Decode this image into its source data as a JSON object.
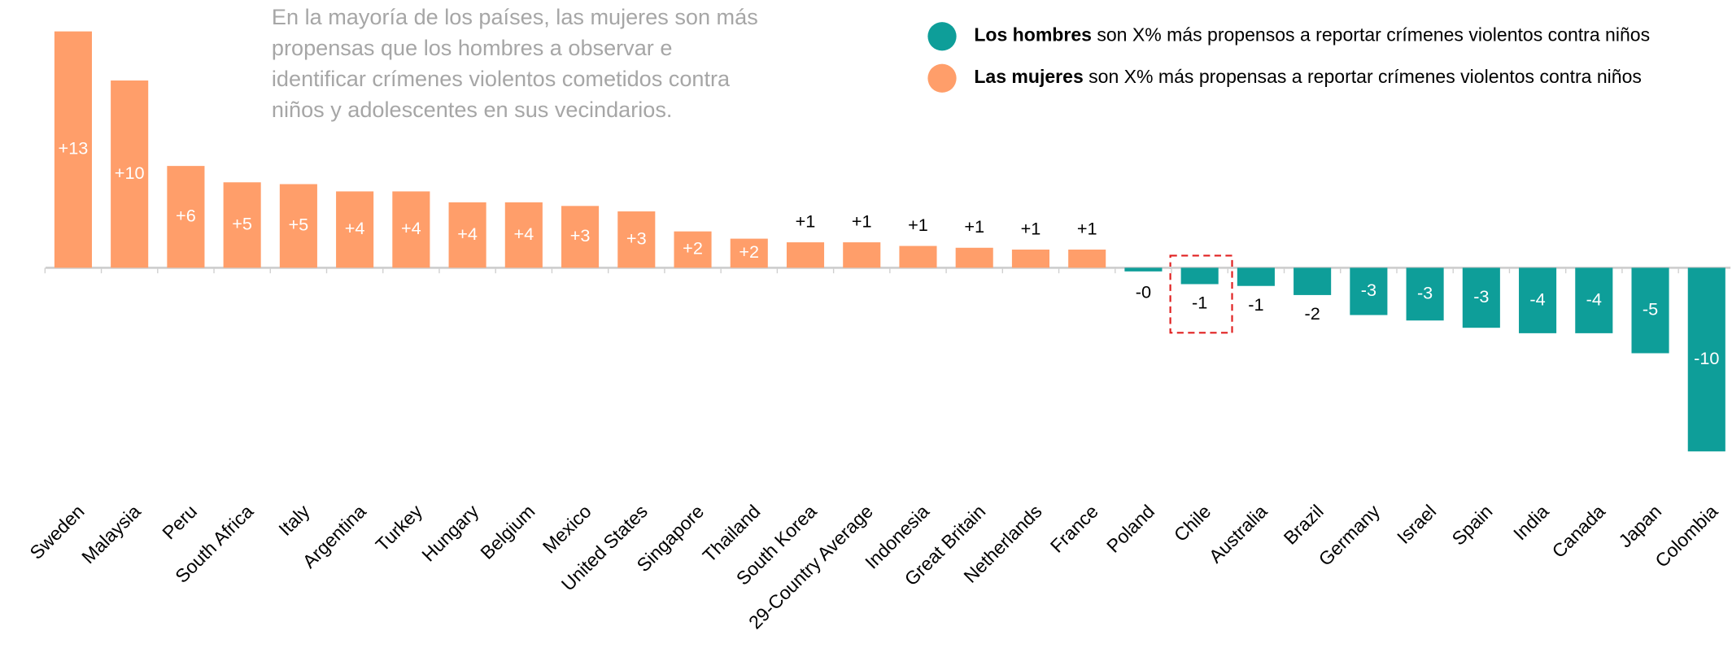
{
  "chart_data": {
    "type": "bar",
    "annotation": [
      "En la mayoría de los países, las mujeres son más",
      "propensas que los hombres a observar e",
      "identificar crímenes violentos cometidos contra",
      "niños y adolescentes en sus vecindarios."
    ],
    "legend": [
      {
        "bold": "Los hombres",
        "text": " son X% más propensos a reportar crímenes violentos contra niños",
        "color": "#0e9e99"
      },
      {
        "bold": "Las mujeres",
        "text": " son X% más propensas a reportar crímenes violentos contra niños",
        "color": "#ff9e6a"
      }
    ],
    "categories": [
      "Sweden",
      "Malaysia",
      "Peru",
      "South Africa",
      "Italy",
      "Argentina",
      "Turkey",
      "Hungary",
      "Belgium",
      "Mexico",
      "United States",
      "Singapore",
      "Thailand",
      "South Korea",
      "29-Country Average",
      "Indonesia",
      "Great Britain",
      "Netherlands",
      "France",
      "Poland",
      "Chile",
      "Australia",
      "Brazil",
      "Germany",
      "Israel",
      "Spain",
      "India",
      "Canada",
      "Japan",
      "Colombia"
    ],
    "values": [
      13,
      10.3,
      5.6,
      4.7,
      4.6,
      4.2,
      4.2,
      3.6,
      3.6,
      3.4,
      3.1,
      2.0,
      1.6,
      1.4,
      1.4,
      1.2,
      1.1,
      1.0,
      1.0,
      -0.2,
      -0.9,
      -1.0,
      -1.5,
      -2.6,
      -2.9,
      -3.3,
      -3.6,
      -3.6,
      -4.7,
      -10.1
    ],
    "value_labels": [
      "+13",
      "+10",
      "+6",
      "+5",
      "+5",
      "+4",
      "+4",
      "+4",
      "+4",
      "+3",
      "+3",
      "+2",
      "+2",
      "+1",
      "+1",
      "+1",
      "+1",
      "+1",
      "+1",
      "-0",
      "-1",
      "-1",
      "-2",
      "-3",
      "-3",
      "-3",
      "-4",
      "-4",
      "-5",
      "-10"
    ],
    "ylim": [
      -11,
      13.5
    ]
  }
}
